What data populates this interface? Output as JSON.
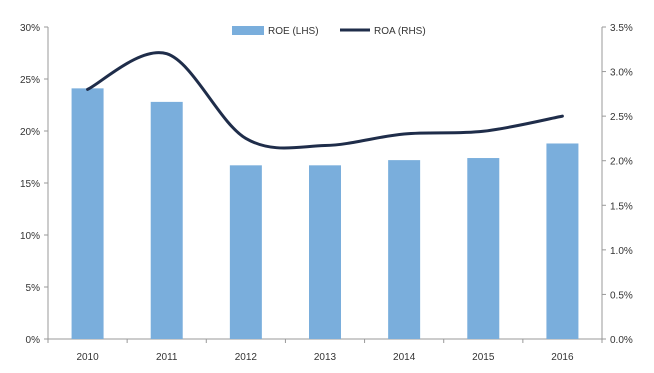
{
  "chart_data": {
    "type": "bar",
    "categories": [
      "2010",
      "2011",
      "2012",
      "2013",
      "2014",
      "2015",
      "2016"
    ],
    "series": [
      {
        "name": "ROE (LHS)",
        "type": "bar",
        "axis": "left",
        "values": [
          24.1,
          22.8,
          16.7,
          16.7,
          17.2,
          17.4,
          18.8
        ]
      },
      {
        "name": "ROA (RHS)",
        "type": "line",
        "axis": "right",
        "values": [
          2.8,
          3.2,
          2.25,
          2.17,
          2.3,
          2.33,
          2.5
        ]
      }
    ],
    "y_left": {
      "ylim": [
        0,
        30
      ],
      "ticks": [
        "0%",
        "5%",
        "10%",
        "15%",
        "20%",
        "25%",
        "30%"
      ]
    },
    "y_right": {
      "ylim": [
        0,
        3.5
      ],
      "ticks": [
        "0.0%",
        "0.5%",
        "1.0%",
        "1.5%",
        "2.0%",
        "2.5%",
        "3.0%",
        "3.5%"
      ]
    },
    "legend_position": "top-center",
    "grid": false,
    "colors": {
      "bar": "#7aaedc",
      "line": "#1f2d4a",
      "axis": "#999999"
    }
  }
}
